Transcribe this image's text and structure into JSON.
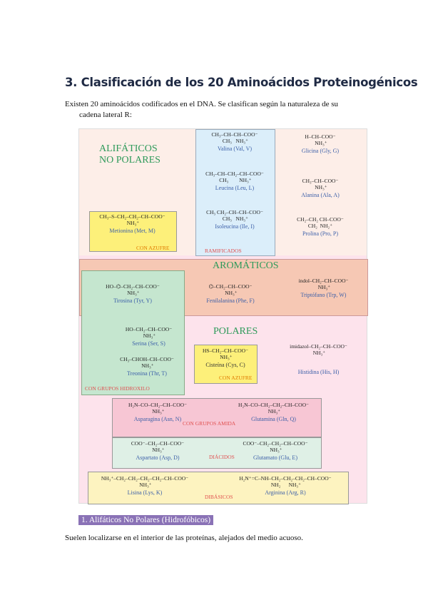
{
  "title": "3. Clasificación de los 20 Aminoácidos Proteinogénicos",
  "intro_line1": "Existen 20 aminoácidos codificados en el DNA. Se clasifican según la naturaleza de su",
  "intro_line2": "cadena lateral R:",
  "figure": {
    "colors": {
      "aliphatic_bg": "#fdeee8",
      "branched_bg": "#dbeefa",
      "sulfur_bg": "#fdf07a",
      "aromatic_bg": "#f6c8b4",
      "hydroxyl_bg": "#c5e6cf",
      "polar_bg": "#fde3ec",
      "amide_bg": "#f7c6d4",
      "diacid_bg": "#dff0e6",
      "dibasic_bg": "#fdf3c0"
    },
    "group_aliphatic": "ALIFÁTICOS NO POLARES",
    "group_aromatic": "AROMÁTICOS",
    "group_polar": "POLARES",
    "tag_sulfur1": "CON AZUFRE",
    "tag_branched": "RAMIFICADOS",
    "tag_hydroxyl": "CON GRUPOS HIDROXILO",
    "tag_sulfur2": "CON AZUFRE",
    "tag_amide": "CON GRUPOS AMIDA",
    "tag_diacid": "DIÁCIDOS",
    "tag_dibasic": "DIBÁSICOS",
    "amino_acids": [
      {
        "formula": "CH₃–CH–CH–COO⁻\n CH₃   NH₃⁺",
        "name": "Valina (Val, V)"
      },
      {
        "formula": "CH₃–CH–CH₂–CH–COO⁻\n CH₃        NH₃⁺",
        "name": "Leucina (Leu, L)"
      },
      {
        "formula": "CH₃ CH₂–CH–CH–COO⁻\n CH₃   NH₃⁺",
        "name": "Isoleucina (Ile, I)"
      },
      {
        "formula": "H–CH–COO⁻\n NH₃⁺",
        "name": "Glicina (Gly, G)"
      },
      {
        "formula": "CH₃–CH–COO⁻\n NH₃⁺",
        "name": "Alanina (Ala, A)"
      },
      {
        "formula": "CH₃–S–CH₂–CH₂–CH–COO⁻\n NH₃⁺",
        "name": "Metionina (Met, M)"
      },
      {
        "formula": "CH₂–CH₂ CH–COO⁻\nCH₂  NH₂⁺",
        "name": "Prolina (Pro, P)"
      },
      {
        "formula": "HO–⌬–CH₂–CH–COO⁻\n NH₃⁺",
        "name": "Tirosina (Tyr, Y)"
      },
      {
        "formula": "⌬–CH₂–CH–COO⁻\n NH₃⁺",
        "name": "Fenilalanina (Phe, F)"
      },
      {
        "formula": "indol–CH₂–CH–COO⁻\n NH₃⁺",
        "name": "Triptófano (Trp, W)"
      },
      {
        "formula": "HO–CH₂–CH–COO⁻\n NH₃⁺",
        "name": "Serina (Ser, S)"
      },
      {
        "formula": "CH₃–CHOH–CH–COO⁻\n NH₃⁺",
        "name": "Treonina (Thr, T)"
      },
      {
        "formula": "HS–CH₂–CH–COO⁻\n NH₃⁺",
        "name": "Cisteína (Cys, C)"
      },
      {
        "formula": "imidazol–CH₂–CH–COO⁻\n NH₃⁺",
        "name": "Histidina (His, H)"
      },
      {
        "formula": "H₂N–CO–CH₂–CH–COO⁻\n NH₃⁺",
        "name": "Asparagina (Asn, N)"
      },
      {
        "formula": "H₂N–CO–CH₂–CH₂–CH–COO⁻\n NH₃⁺",
        "name": "Glutamina (Gln, Q)"
      },
      {
        "formula": "COO⁻–CH₂–CH–COO⁻\n NH₃⁺",
        "name": "Aspartato (Asp, D)"
      },
      {
        "formula": "COO⁻–CH₂–CH₂–CH–COO⁻\n NH₃⁺",
        "name": "Glutamato (Glu, E)"
      },
      {
        "formula": "NH₃⁺–CH₂–CH₂–CH₂–CH₂–CH–COO⁻\n NH₃⁺",
        "name": "Lisina (Lys, K)"
      },
      {
        "formula": "H₂N⁺=C–NH–CH₂–CH₂–CH₂–CH–COO⁻\n NH₂      NH₃⁺",
        "name": "Arginina (Arg, R)"
      }
    ]
  },
  "section_heading": "1. Alifáticos No Polares (Hidrofóbicos)",
  "section_body": "Suelen localizarse en el interior de las proteínas, alejados del medio acuoso."
}
